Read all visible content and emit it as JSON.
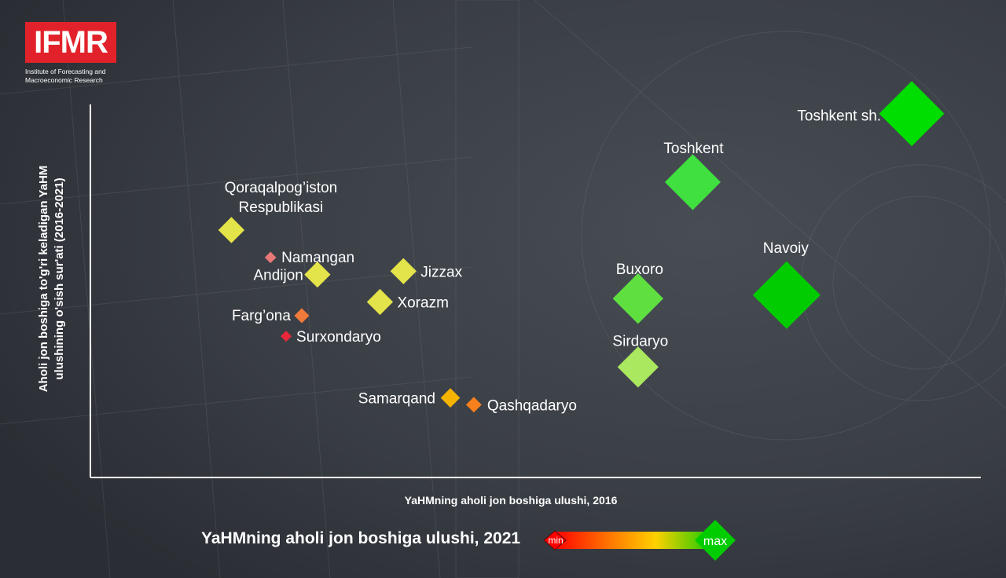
{
  "logo": {
    "text": "IFMR",
    "subtitle": "Institute of Forecasting and Macroeconomic Research"
  },
  "legend": {
    "title": "YaHMning aholi jon boshiga ulushi, 2021",
    "min_label": "min",
    "max_label": "max",
    "gradient_colors": [
      "#ff0000",
      "#ff7a00",
      "#ffd000",
      "#00cc00"
    ]
  },
  "chart_data": {
    "type": "scatter",
    "xlabel": "YaHMning aholi jon boshiga ulushi, 2016",
    "ylabel": "Aholi jon boshiga to'g'ri keladigan YaHM ulushining o'sish sur'ati (2016-2021)",
    "axis_ticks": false,
    "grid": false,
    "size_and_color_encode": "YaHMning aholi jon boshiga ulushi, 2021",
    "xlim": [
      0,
      100
    ],
    "ylim": [
      0,
      100
    ],
    "points": [
      {
        "name": "Qoraqalpog'iston Respublikasi",
        "label_lines": [
          "Qoraqalpog’iston",
          "Respublikasi"
        ],
        "x": 12,
        "y": 64,
        "level": 0.55,
        "color": "#e3e34a"
      },
      {
        "name": "Namangan",
        "x": 17,
        "y": 56,
        "level": 0.12,
        "color": "#e87878"
      },
      {
        "name": "Andijon",
        "x": 23,
        "y": 51,
        "level": 0.55,
        "color": "#e3e34a"
      },
      {
        "name": "Jizzax",
        "x": 34,
        "y": 52,
        "level": 0.55,
        "color": "#e3e34a"
      },
      {
        "name": "Xorazm",
        "x": 31,
        "y": 43,
        "level": 0.55,
        "color": "#e3e34a"
      },
      {
        "name": "Farg’ona",
        "x": 21,
        "y": 39,
        "level": 0.3,
        "color": "#f07a3a"
      },
      {
        "name": "Surxondaryo",
        "x": 19,
        "y": 33,
        "level": 0.05,
        "color": "#e8283a"
      },
      {
        "name": "Samarqand",
        "x": 40,
        "y": 15,
        "level": 0.42,
        "color": "#f5b400"
      },
      {
        "name": "Qashqadaryo",
        "x": 43,
        "y": 13,
        "level": 0.32,
        "color": "#f5801c"
      },
      {
        "name": "Sirdaryo",
        "x": 64,
        "y": 24,
        "level": 0.75,
        "color": "#a9e85f"
      },
      {
        "name": "Buxoro",
        "x": 64,
        "y": 44,
        "level": 0.85,
        "color": "#5fe040"
      },
      {
        "name": "Toshkent",
        "x": 71,
        "y": 78,
        "level": 0.9,
        "color": "#3fe03f"
      },
      {
        "name": "Navoiy",
        "x": 83,
        "y": 45,
        "level": 1.0,
        "color": "#00cc00"
      },
      {
        "name": "Toshkent sh.",
        "x": 99,
        "y": 98,
        "level": 0.98,
        "color": "#00dd00"
      }
    ]
  }
}
